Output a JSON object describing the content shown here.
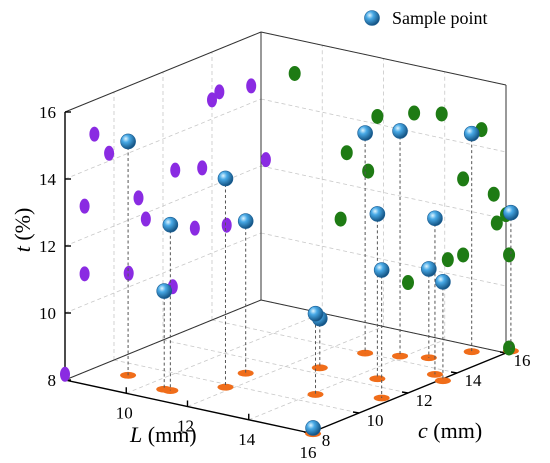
{
  "chart_data": {
    "type": "scatter3d",
    "axes": {
      "L": {
        "label": "L",
        "unit": " (mm)",
        "ticks": [
          "10",
          "12",
          "14",
          "16"
        ],
        "range": [
          8,
          16
        ]
      },
      "c": {
        "label": "c",
        "unit": " (mm)",
        "ticks": [
          "8",
          "10",
          "12",
          "14",
          "16"
        ],
        "range": [
          8,
          16
        ]
      },
      "t": {
        "label": "t",
        "unit": " (%)",
        "ticks": [
          "8",
          "10",
          "12",
          "14",
          "16"
        ],
        "range": [
          8,
          16
        ]
      }
    },
    "legend": {
      "label": "Sample point",
      "position": "top-right"
    },
    "grid": true,
    "colors": {
      "sample": "#2a7fc0",
      "sample_highlight": "#c6ecff",
      "projection_floor": "#f06d1a",
      "projection_back_L": "#8a2be2",
      "projection_back_c": "#1e7b14",
      "dropline": "#555555"
    },
    "series": [
      {
        "name": "Sample point",
        "points": [
          {
            "L": 9.1,
            "c": 9.2,
            "t": 14.98
          },
          {
            "L": 10.6,
            "c": 8.8,
            "t": 10.93
          },
          {
            "L": 10.8,
            "c": 8.8,
            "t": 12.95
          },
          {
            "L": 11.8,
            "c": 9.8,
            "t": 14.23
          },
          {
            "L": 11.5,
            "c": 11.0,
            "t": 12.54
          },
          {
            "L": 12.8,
            "c": 12.4,
            "t": 9.47
          },
          {
            "L": 13.0,
            "c": 14.0,
            "t": 14.57
          },
          {
            "L": 13.9,
            "c": 14.3,
            "t": 14.72
          },
          {
            "L": 14.6,
            "c": 14.6,
            "t": 10.65
          },
          {
            "L": 14.1,
            "c": 10.6,
            "t": 10.41
          },
          {
            "L": 14.6,
            "c": 12.5,
            "t": 12.92
          },
          {
            "L": 15.7,
            "c": 11.3,
            "t": 11.82
          },
          {
            "L": 15.6,
            "c": 13.6,
            "t": 12.66
          },
          {
            "L": 15.2,
            "c": 15.6,
            "t": 14.51
          },
          {
            "L": 16.1,
            "c": 13.3,
            "t": 10.95
          },
          {
            "L": 16.0,
            "c": 16.2,
            "t": 12.13
          },
          {
            "L": 16.1,
            "c": 8.0,
            "t": 8.17
          }
        ]
      }
    ]
  }
}
